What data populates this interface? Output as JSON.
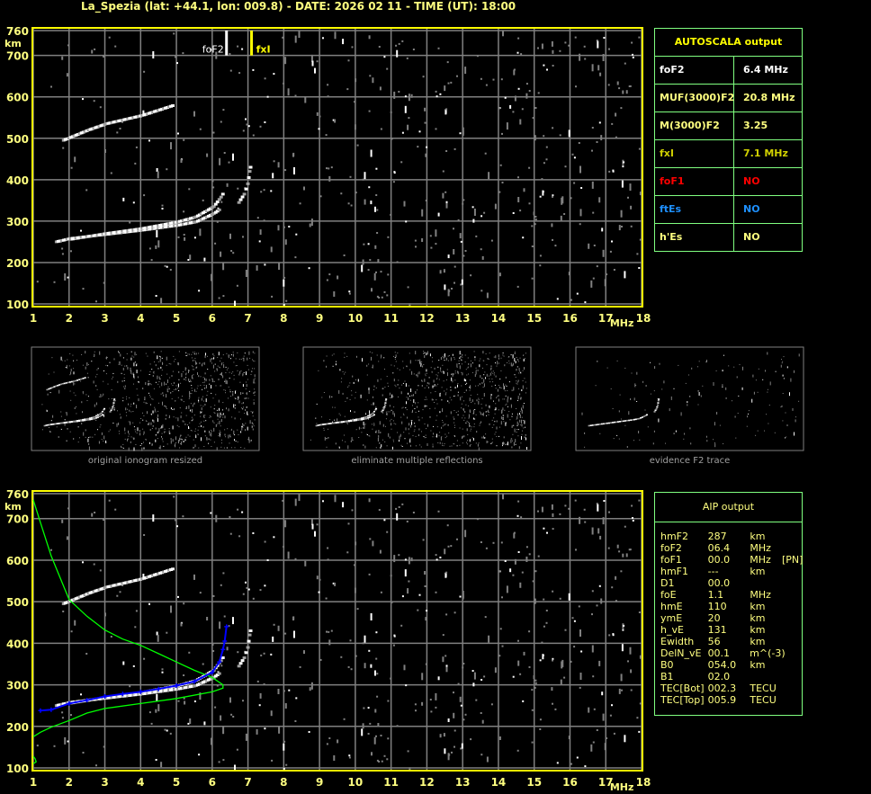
{
  "header": {
    "title": "La_Spezia (lat: +44.1, lon: 009.8) - DATE: 2026 02 11 - TIME (UT): 18:00"
  },
  "colors": {
    "frame": "#ffff00",
    "grid": "#808080",
    "axis_text": "#ffff80",
    "trace": "#ffffff",
    "profile": "#00ff00",
    "aip_trace": "#0000ff",
    "table_border": "#80ff80",
    "foF1": "#ff0000",
    "ftEs": "#1e90ff"
  },
  "chart_data": [
    {
      "type": "scatter",
      "name_label": "ionogram",
      "xlabel": "MHz",
      "ylabel": "km",
      "xlim": [
        1,
        18
      ],
      "ylim": [
        100,
        760
      ],
      "x_ticks": [
        "1",
        "2",
        "3",
        "4",
        "5",
        "6",
        "7",
        "8",
        "9",
        "10",
        "11",
        "12",
        "13",
        "14",
        "15",
        "16",
        "17",
        "18"
      ],
      "y_ticks": [
        "760",
        "700",
        "600",
        "500",
        "400",
        "300",
        "200",
        "100"
      ],
      "grid": true,
      "markers": [
        {
          "label": "foF2",
          "freq": 6.4,
          "color": "#ffffff"
        },
        {
          "label": "fxI",
          "freq": 7.1,
          "color": "#ffff00"
        }
      ],
      "traces": {
        "o_lower": [
          [
            1.6,
            250
          ],
          [
            2,
            258
          ],
          [
            3,
            268
          ],
          [
            4,
            278
          ],
          [
            5,
            290
          ],
          [
            5.5,
            298
          ],
          [
            6,
            318
          ],
          [
            6.2,
            330
          ]
        ],
        "o_upper": [
          [
            2,
            256
          ],
          [
            3,
            270
          ],
          [
            4,
            282
          ],
          [
            5,
            298
          ],
          [
            5.5,
            310
          ],
          [
            6,
            335
          ],
          [
            6.2,
            358
          ],
          [
            6.3,
            372
          ]
        ],
        "x_trace": [
          [
            6.7,
            345
          ],
          [
            6.85,
            365
          ],
          [
            6.95,
            390
          ],
          [
            7.0,
            420
          ],
          [
            7.05,
            440
          ]
        ],
        "multiple": [
          [
            1.8,
            495
          ],
          [
            2.5,
            520
          ],
          [
            3,
            535
          ],
          [
            4,
            555
          ],
          [
            4.9,
            580
          ]
        ]
      }
    },
    {
      "type": "line",
      "name_label": "aip-ionogram",
      "xlabel": "MHz",
      "ylabel": "km",
      "xlim": [
        1,
        18
      ],
      "ylim": [
        100,
        760
      ],
      "x_ticks": [
        "1",
        "2",
        "3",
        "4",
        "5",
        "6",
        "7",
        "8",
        "9",
        "10",
        "11",
        "12",
        "13",
        "14",
        "15",
        "16",
        "17",
        "18"
      ],
      "y_ticks": [
        "760",
        "700",
        "600",
        "500",
        "400",
        "300",
        "200",
        "100"
      ],
      "grid": true,
      "series": [
        {
          "kind": "profile",
          "color": "#00ff00",
          "points": [
            [
              1,
              745
            ],
            [
              1.2,
              690
            ],
            [
              1.5,
              610
            ],
            [
              2,
              505
            ],
            [
              2.5,
              465
            ],
            [
              3,
              432
            ],
            [
              3.5,
              410
            ],
            [
              4,
              395
            ],
            [
              4.5,
              375
            ],
            [
              5,
              355
            ],
            [
              5.5,
              335
            ],
            [
              6,
              318
            ],
            [
              6.3,
              300
            ],
            [
              6.3,
              292
            ],
            [
              6,
              283
            ],
            [
              5,
              267
            ],
            [
              4,
              255
            ],
            [
              3,
              243
            ],
            [
              2.5,
              232
            ],
            [
              2,
              214
            ],
            [
              1.5,
              198
            ],
            [
              1.2,
              186
            ],
            [
              1,
              175
            ]
          ]
        },
        {
          "kind": "profile-e",
          "color": "#00ff00",
          "points": [
            [
              1,
              128
            ],
            [
              1.05,
              122
            ],
            [
              1.08,
              115
            ],
            [
              1,
              110
            ]
          ]
        },
        {
          "kind": "fitted-trace",
          "color": "#0000ff",
          "points": [
            [
              1.2,
              238
            ],
            [
              1.5,
              240
            ],
            [
              2,
              255
            ],
            [
              2.5,
              263
            ],
            [
              3,
              272
            ],
            [
              3.5,
              278
            ],
            [
              4,
              283
            ],
            [
              4.5,
              290
            ],
            [
              5,
              298
            ],
            [
              5.5,
              308
            ],
            [
              6,
              330
            ],
            [
              6.2,
              355
            ],
            [
              6.3,
              385
            ],
            [
              6.35,
              405
            ],
            [
              6.4,
              440
            ]
          ]
        }
      ]
    }
  ],
  "thumbnails": [
    {
      "caption": "original ionogram resized"
    },
    {
      "caption": "eliminate multiple reflections"
    },
    {
      "caption": "evidence F2 trace"
    }
  ],
  "autoscala": {
    "title": "AUTOSCALA output",
    "rows": [
      {
        "label": "foF2",
        "value": "6.4 MHz",
        "color": "#ffffff"
      },
      {
        "label": "MUF(3000)F2",
        "value": "20.8 MHz",
        "color": "#ffff80"
      },
      {
        "label": "M(3000)F2",
        "value": "3.25",
        "color": "#ffff80"
      },
      {
        "label": "fxI",
        "value": "7.1 MHz",
        "color": "#d0d000"
      },
      {
        "label": "foF1",
        "value": "NO",
        "color": "#ff0000"
      },
      {
        "label": "ftEs",
        "value": "NO",
        "color": "#1e90ff"
      },
      {
        "label": "h'Es",
        "value": "NO",
        "color": "#ffff80"
      }
    ]
  },
  "aip": {
    "title": "AIP output",
    "rows": [
      [
        "hmF2",
        "287",
        "km",
        ""
      ],
      [
        "foF2",
        "06.4",
        "MHz",
        ""
      ],
      [
        "foF1",
        "00.0",
        "MHz",
        "[PN]"
      ],
      [
        "hmF1",
        "---",
        "km",
        ""
      ],
      [
        "D1",
        "00.0",
        "",
        ""
      ],
      [
        "foE",
        "1.1",
        "MHz",
        ""
      ],
      [
        "hmE",
        "110",
        "km",
        ""
      ],
      [
        "ymE",
        "20",
        "km",
        ""
      ],
      [
        "h_vE",
        "131",
        "km",
        ""
      ],
      [
        "Ewidth",
        "56",
        "km",
        ""
      ],
      [
        "DelN_vE",
        "00.1",
        "m^(-3)",
        ""
      ],
      [
        "B0",
        "054.0",
        "km",
        ""
      ],
      [
        "B1",
        "02.0",
        "",
        ""
      ],
      [
        "TEC[Bot]",
        "002.3",
        "TECU",
        ""
      ],
      [
        "TEC[Top]",
        "005.9",
        "TECU",
        ""
      ]
    ]
  }
}
